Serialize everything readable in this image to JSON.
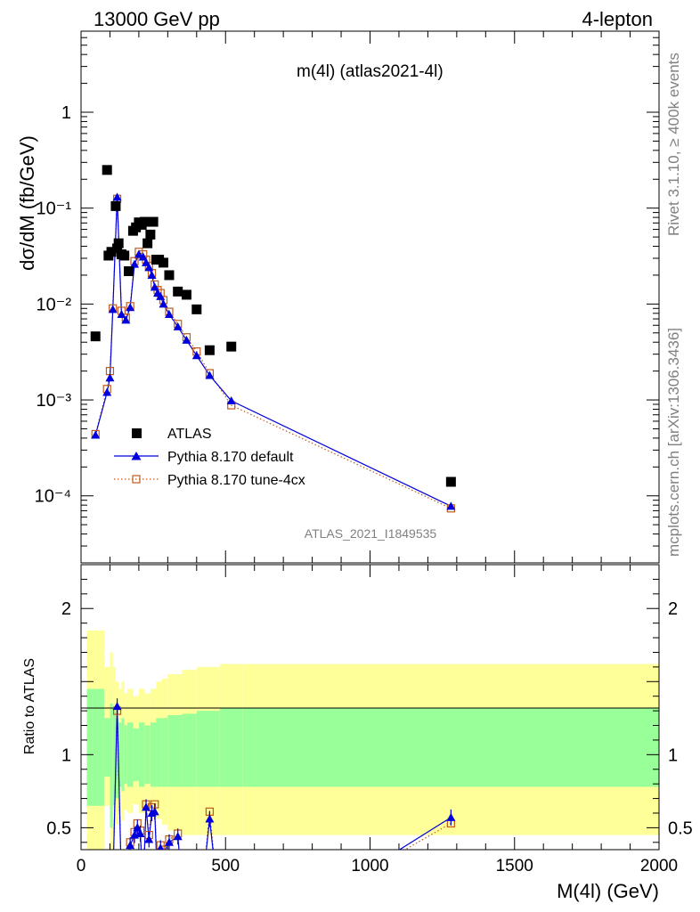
{
  "header": {
    "left": "13000 GeV pp",
    "right": "4-lepton"
  },
  "side": {
    "rivet": "Rivet 3.1.10, ≥ 400k events",
    "mcplots": "mcplots.cern.ch [arXiv:1306.3436]"
  },
  "colors": {
    "atlas": "#000000",
    "default": "#0000dd",
    "tune": "#c05a1a",
    "band_green": "#99ff99",
    "band_yellow": "#ffff99"
  },
  "chart_data": [
    {
      "type": "scatter",
      "title": "m(4l) (atlas2021-4l)",
      "watermark": "ATLAS_2021_I1849535",
      "ylabel": "dσ/dM (fb/GeV)",
      "yscale": "log",
      "ylim": [
        2e-05,
        7
      ],
      "xlim": [
        0,
        2000
      ],
      "yticks": [
        1,
        0.1,
        0.01,
        0.001,
        0.0001
      ],
      "ytick_labels": [
        "1",
        "10⁻¹",
        "10⁻²",
        "10⁻³",
        "10⁻⁴"
      ],
      "legend_position": "bottom-left",
      "series": [
        {
          "name": "ATLAS",
          "marker": "square",
          "x": [
            50,
            90,
            95,
            105,
            120,
            125,
            130,
            140,
            150,
            165,
            180,
            190,
            200,
            210,
            220,
            230,
            240,
            250,
            260,
            270,
            285,
            305,
            335,
            365,
            400,
            445,
            520,
            1280
          ],
          "y": [
            0.0046,
            0.25,
            0.032,
            0.035,
            0.105,
            0.038,
            0.043,
            0.033,
            0.032,
            0.022,
            0.058,
            0.063,
            0.071,
            0.067,
            0.072,
            0.043,
            0.053,
            0.072,
            0.029,
            0.029,
            0.027,
            0.02,
            0.0135,
            0.0125,
            0.0088,
            0.0033,
            0.0036,
            0.00014
          ]
        },
        {
          "name": "Pythia 8.170 default",
          "marker": "triangle",
          "x": [
            50,
            90,
            100,
            110,
            125,
            140,
            155,
            170,
            185,
            200,
            215,
            225,
            235,
            245,
            255,
            265,
            275,
            285,
            305,
            335,
            365,
            400,
            445,
            520,
            1280
          ],
          "y": [
            0.00043,
            0.0012,
            0.0017,
            0.0088,
            0.13,
            0.0078,
            0.0068,
            0.0092,
            0.026,
            0.033,
            0.031,
            0.027,
            0.024,
            0.02,
            0.015,
            0.013,
            0.012,
            0.01,
            0.0078,
            0.0058,
            0.0042,
            0.0029,
            0.0018,
            0.00098,
            7.8e-05
          ]
        },
        {
          "name": "Pythia 8.170 tune-4cx",
          "marker": "open-square",
          "x": [
            50,
            90,
            100,
            110,
            125,
            140,
            155,
            170,
            185,
            200,
            215,
            225,
            235,
            245,
            255,
            265,
            275,
            285,
            305,
            335,
            365,
            400,
            445,
            520,
            1280
          ],
          "y": [
            0.00044,
            0.0013,
            0.002,
            0.009,
            0.125,
            0.0085,
            0.0072,
            0.0095,
            0.028,
            0.035,
            0.033,
            0.029,
            0.025,
            0.021,
            0.016,
            0.014,
            0.013,
            0.011,
            0.0083,
            0.0062,
            0.0045,
            0.0032,
            0.0019,
            0.00088,
            7.4e-05
          ]
        }
      ]
    },
    {
      "type": "line",
      "ylabel": "Ratio to ATLAS",
      "xlabel": "M(4l) (GeV)",
      "xlim": [
        0,
        2000
      ],
      "ylim": [
        0.35,
        2.3
      ],
      "xticks": [
        0,
        500,
        1000,
        1500,
        2000
      ],
      "yticks": [
        0.5,
        1,
        2
      ],
      "ytick_labels": [
        "0.5",
        "1",
        "2"
      ],
      "bands": {
        "edges": [
          20,
          80,
          100,
          110,
          120,
          130,
          140,
          150,
          160,
          180,
          200,
          220,
          240,
          260,
          280,
          300,
          350,
          400,
          480,
          560,
          2000
        ],
        "green_lo": [
          0.65,
          0.85,
          0.5,
          0.65,
          0.7,
          0.78,
          0.75,
          0.8,
          0.78,
          0.82,
          0.78,
          0.8,
          0.78,
          0.78,
          0.78,
          0.78,
          0.78,
          0.78,
          0.78,
          0.78
        ],
        "green_hi": [
          1.45,
          1.25,
          1.35,
          1.3,
          1.25,
          1.22,
          1.25,
          1.2,
          1.22,
          1.18,
          1.22,
          1.2,
          1.22,
          1.25,
          1.25,
          1.27,
          1.28,
          1.3,
          1.32,
          1.32
        ],
        "yellow_lo": [
          0.35,
          0.65,
          0.35,
          0.45,
          0.52,
          0.6,
          0.55,
          0.62,
          0.6,
          0.66,
          0.6,
          0.63,
          0.58,
          0.56,
          0.52,
          0.48,
          0.45,
          0.45,
          0.45,
          0.45
        ],
        "yellow_hi": [
          1.85,
          1.6,
          1.7,
          1.6,
          1.5,
          1.45,
          1.5,
          1.42,
          1.45,
          1.4,
          1.45,
          1.42,
          1.45,
          1.5,
          1.52,
          1.55,
          1.58,
          1.6,
          1.62,
          1.62
        ]
      },
      "series": [
        {
          "name": "Pythia 8.170 default",
          "x": [
            110,
            125,
            140,
            170,
            185,
            195,
            205,
            215,
            225,
            235,
            245,
            255,
            265,
            275,
            285,
            305,
            335,
            350,
            420,
            445,
            470,
            900,
            1280
          ],
          "y": [
            0.1,
            1.33,
            0.1,
            0.38,
            0.45,
            0.5,
            0.46,
            0.1,
            0.64,
            0.42,
            0.6,
            0.61,
            0.1,
            0.36,
            0.33,
            0.4,
            0.44,
            0.1,
            0.1,
            0.56,
            0.1,
            0.1,
            0.57
          ]
        },
        {
          "name": "Pythia 8.170 tune-4cx",
          "x": [
            110,
            125,
            140,
            170,
            185,
            195,
            205,
            215,
            225,
            235,
            245,
            255,
            265,
            275,
            285,
            305,
            335,
            350,
            420,
            445,
            470,
            900,
            1280
          ],
          "y": [
            0.1,
            1.3,
            0.1,
            0.4,
            0.47,
            0.53,
            0.48,
            0.1,
            0.66,
            0.45,
            0.64,
            0.66,
            0.1,
            0.38,
            0.35,
            0.42,
            0.46,
            0.1,
            0.1,
            0.61,
            0.1,
            0.1,
            0.53
          ]
        }
      ]
    }
  ]
}
